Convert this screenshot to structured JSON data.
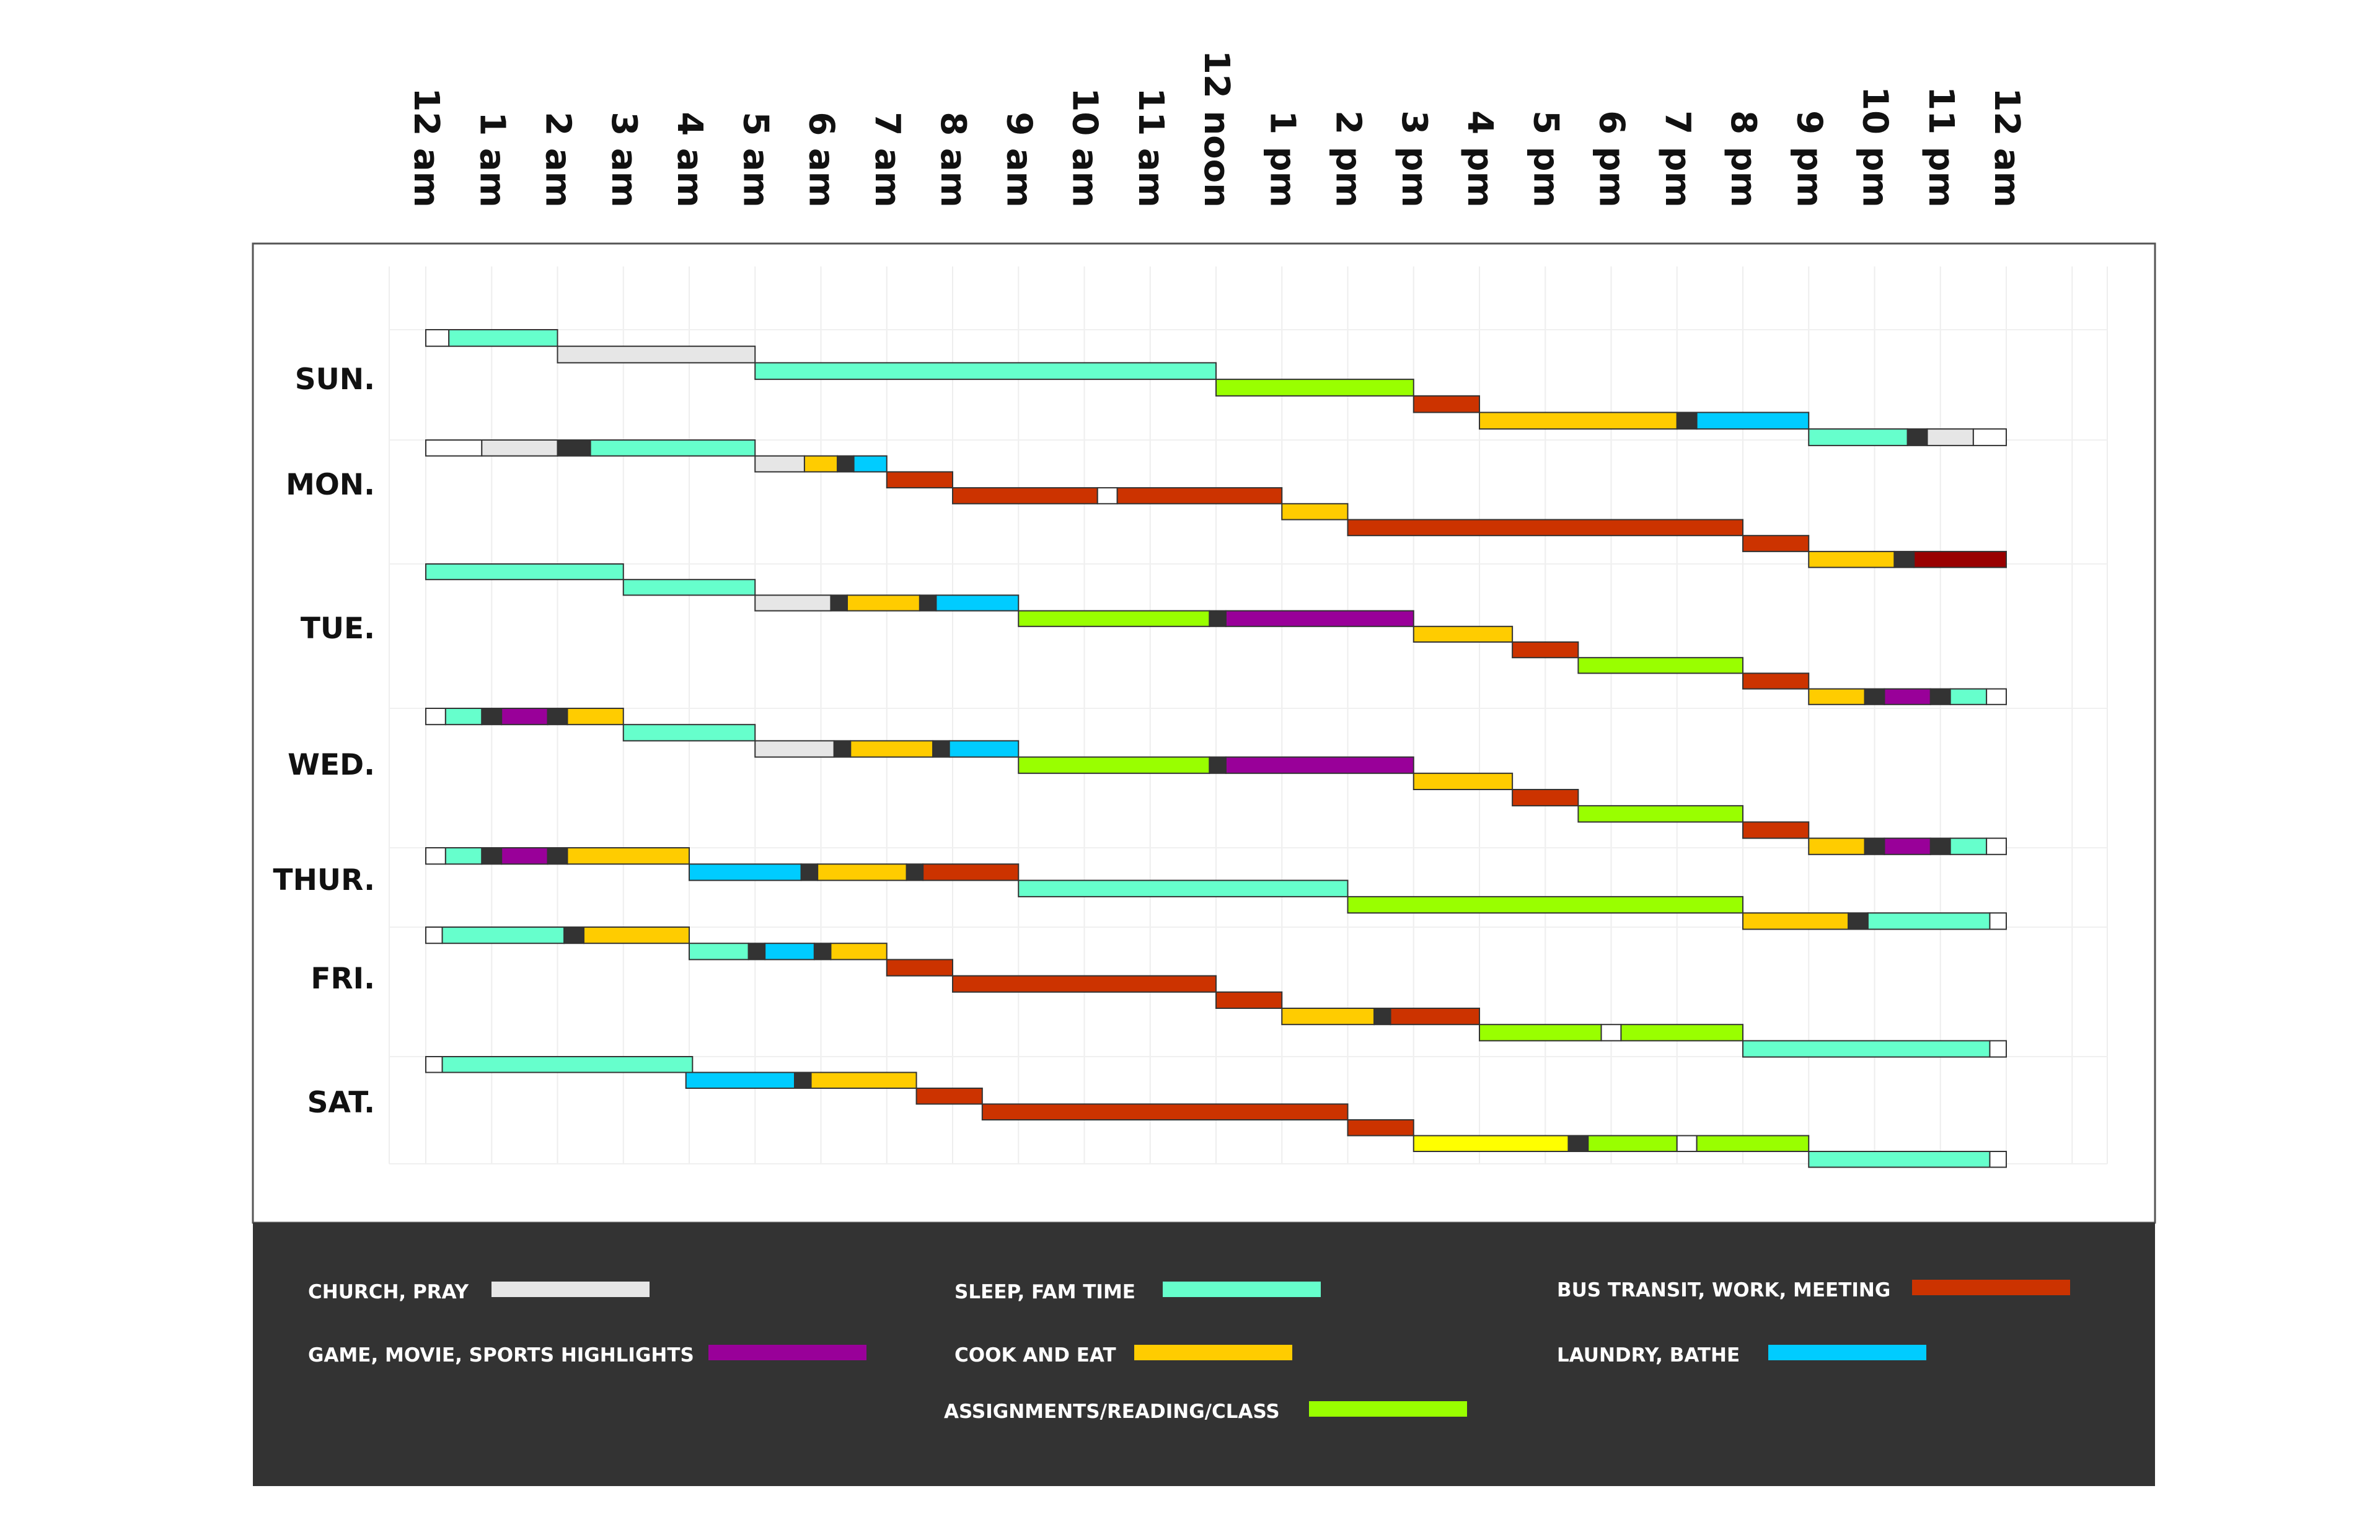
{
  "chart_data": {
    "type": "gantt",
    "title": "",
    "x_axis": {
      "range_hours": [
        0,
        24
      ],
      "tick_labels": [
        "12 am",
        "1 am",
        "2 am",
        "3 am",
        "4 am",
        "5 am",
        "6 am",
        "7 am",
        "8 am",
        "9 am",
        "10 am",
        "11 am",
        "12 noon",
        "1 pm",
        "2 pm",
        "3 pm",
        "4 pm",
        "5 pm",
        "6 pm",
        "7 pm",
        "8 pm",
        "9 pm",
        "10 pm",
        "11 pm",
        "12 am"
      ],
      "grid": true
    },
    "colors": {
      "church": "#e6e6e6",
      "sleep": "#66ffcc",
      "bus": "#cc3300",
      "game": "#990099",
      "cook": "#ffcc00",
      "laundry": "#00ccff",
      "assign": "#99ff00",
      "free": "#ffffff",
      "transition": "#333333",
      "late": "#990000",
      "yellow": "#ffff00"
    },
    "legend": [
      {
        "key": "church",
        "label": "CHURCH, PRAY"
      },
      {
        "key": "sleep",
        "label": "SLEEP, FAM TIME"
      },
      {
        "key": "bus",
        "label": "BUS TRANSIT, WORK, MEETING"
      },
      {
        "key": "game",
        "label": "GAME, MOVIE, SPORTS HIGHLIGHTS"
      },
      {
        "key": "cook",
        "label": "COOK AND EAT"
      },
      {
        "key": "laundry",
        "label": "LAUNDRY, BATHE"
      },
      {
        "key": "assign",
        "label": "ASSIGNMENTS/READING/CLASS"
      }
    ],
    "days": [
      {
        "label": "SUN.",
        "segments": [
          [
            0,
            0,
            0.35,
            "free"
          ],
          [
            0,
            0.35,
            2,
            "sleep"
          ],
          [
            1,
            2,
            5,
            "church"
          ],
          [
            2,
            5,
            12,
            "sleep"
          ],
          [
            3,
            12,
            15,
            "assign"
          ],
          [
            4,
            15,
            16,
            "bus"
          ],
          [
            5,
            16,
            19,
            "cook"
          ],
          [
            5,
            19,
            19.3,
            "transition"
          ],
          [
            5,
            19.3,
            21,
            "laundry"
          ],
          [
            6,
            21,
            22.5,
            "sleep"
          ],
          [
            6,
            22.5,
            22.8,
            "transition"
          ],
          [
            6,
            22.8,
            23.5,
            "church"
          ],
          [
            6,
            23.5,
            24,
            "free"
          ]
        ]
      },
      {
        "label": "MON.",
        "segments": [
          [
            0,
            0,
            0.85,
            "free"
          ],
          [
            0,
            0.85,
            2,
            "church"
          ],
          [
            0,
            2,
            2.5,
            "transition"
          ],
          [
            0,
            2.5,
            5,
            "sleep"
          ],
          [
            1,
            5,
            5.75,
            "church"
          ],
          [
            1,
            5.75,
            6.25,
            "cook"
          ],
          [
            1,
            6.25,
            6.5,
            "transition"
          ],
          [
            1,
            6.5,
            7,
            "laundry"
          ],
          [
            2,
            7,
            8,
            "bus"
          ],
          [
            3,
            8,
            10.2,
            "bus"
          ],
          [
            3,
            10.2,
            10.5,
            "free"
          ],
          [
            3,
            10.5,
            13,
            "bus"
          ],
          [
            4,
            13,
            14,
            "cook"
          ],
          [
            5,
            14,
            20,
            "bus"
          ],
          [
            6,
            20,
            21,
            "bus"
          ],
          [
            7,
            21,
            22.3,
            "cook"
          ],
          [
            7,
            22.3,
            22.6,
            "transition"
          ],
          [
            7,
            22.6,
            24,
            "late"
          ]
        ]
      },
      {
        "label": "TUE.",
        "segments": [
          [
            0,
            0,
            3,
            "sleep"
          ],
          [
            1,
            3,
            5,
            "sleep"
          ],
          [
            2,
            5,
            6.15,
            "church"
          ],
          [
            2,
            6.15,
            6.4,
            "transition"
          ],
          [
            2,
            6.4,
            7.5,
            "cook"
          ],
          [
            2,
            7.5,
            7.75,
            "transition"
          ],
          [
            2,
            7.75,
            9,
            "laundry"
          ],
          [
            3,
            9,
            11.9,
            "assign"
          ],
          [
            3,
            11.9,
            12.15,
            "transition"
          ],
          [
            3,
            12.15,
            15,
            "game"
          ],
          [
            4,
            15,
            16.5,
            "cook"
          ],
          [
            5,
            16.5,
            17.5,
            "bus"
          ],
          [
            6,
            17.5,
            20,
            "assign"
          ],
          [
            7,
            20,
            21,
            "bus"
          ],
          [
            8,
            21,
            21.85,
            "cook"
          ],
          [
            8,
            21.85,
            22.15,
            "transition"
          ],
          [
            8,
            22.15,
            22.85,
            "game"
          ],
          [
            8,
            22.85,
            23.15,
            "transition"
          ],
          [
            8,
            23.15,
            23.7,
            "sleep"
          ],
          [
            8,
            23.7,
            24,
            "free"
          ]
        ]
      },
      {
        "label": "WED.",
        "segments": [
          [
            0,
            0,
            0.3,
            "free"
          ],
          [
            0,
            0.3,
            0.85,
            "sleep"
          ],
          [
            0,
            0.85,
            1.15,
            "transition"
          ],
          [
            0,
            1.15,
            1.85,
            "game"
          ],
          [
            0,
            1.85,
            2.15,
            "transition"
          ],
          [
            0,
            2.15,
            3,
            "cook"
          ],
          [
            1,
            3,
            5,
            "sleep"
          ],
          [
            2,
            5,
            6.2,
            "church"
          ],
          [
            2,
            6.2,
            6.45,
            "transition"
          ],
          [
            2,
            6.45,
            7.7,
            "cook"
          ],
          [
            2,
            7.7,
            7.95,
            "transition"
          ],
          [
            2,
            7.95,
            9,
            "laundry"
          ],
          [
            3,
            9,
            11.9,
            "assign"
          ],
          [
            3,
            11.9,
            12.15,
            "transition"
          ],
          [
            3,
            12.15,
            15,
            "game"
          ],
          [
            4,
            15,
            16.5,
            "cook"
          ],
          [
            5,
            16.5,
            17.5,
            "bus"
          ],
          [
            6,
            17.5,
            20,
            "assign"
          ],
          [
            7,
            20,
            21,
            "bus"
          ],
          [
            8,
            21,
            21.85,
            "cook"
          ],
          [
            8,
            21.85,
            22.15,
            "transition"
          ],
          [
            8,
            22.15,
            22.85,
            "game"
          ],
          [
            8,
            22.85,
            23.15,
            "transition"
          ],
          [
            8,
            23.15,
            23.7,
            "sleep"
          ],
          [
            8,
            23.7,
            24,
            "free"
          ]
        ]
      },
      {
        "label": "THUR.",
        "segments": [
          [
            0,
            0,
            0.3,
            "free"
          ],
          [
            0,
            0.3,
            0.85,
            "sleep"
          ],
          [
            0,
            0.85,
            1.15,
            "transition"
          ],
          [
            0,
            1.15,
            1.85,
            "game"
          ],
          [
            0,
            1.85,
            2.15,
            "transition"
          ],
          [
            0,
            2.15,
            4,
            "cook"
          ],
          [
            1,
            4,
            5.7,
            "laundry"
          ],
          [
            1,
            5.7,
            5.95,
            "transition"
          ],
          [
            1,
            5.95,
            7.3,
            "cook"
          ],
          [
            1,
            7.3,
            7.55,
            "transition"
          ],
          [
            1,
            7.55,
            9,
            "bus"
          ],
          [
            2,
            9,
            14,
            "sleep"
          ],
          [
            3,
            14,
            20,
            "assign"
          ],
          [
            4,
            20,
            21.6,
            "cook"
          ],
          [
            4,
            21.6,
            21.9,
            "transition"
          ],
          [
            4,
            21.9,
            23.75,
            "sleep"
          ],
          [
            4,
            23.75,
            24,
            "free"
          ]
        ]
      },
      {
        "label": "FRI.",
        "segments": [
          [
            0,
            0,
            0.25,
            "free"
          ],
          [
            0,
            0.25,
            2.1,
            "sleep"
          ],
          [
            0,
            2.1,
            2.4,
            "transition"
          ],
          [
            0,
            2.4,
            4,
            "cook"
          ],
          [
            1,
            4,
            4.9,
            "sleep"
          ],
          [
            1,
            4.9,
            5.15,
            "transition"
          ],
          [
            1,
            5.15,
            5.9,
            "laundry"
          ],
          [
            1,
            5.9,
            6.15,
            "transition"
          ],
          [
            1,
            6.15,
            7,
            "cook"
          ],
          [
            2,
            7,
            8,
            "bus"
          ],
          [
            3,
            8,
            12,
            "bus"
          ],
          [
            4,
            12,
            13,
            "bus"
          ],
          [
            5,
            13,
            14.4,
            "cook"
          ],
          [
            5,
            14.4,
            14.65,
            "transition"
          ],
          [
            5,
            14.65,
            16,
            "bus"
          ],
          [
            6,
            16,
            17.85,
            "assign"
          ],
          [
            6,
            17.85,
            18.15,
            "free"
          ],
          [
            6,
            18.15,
            20,
            "assign"
          ],
          [
            7,
            20,
            23.75,
            "sleep"
          ],
          [
            7,
            23.75,
            24,
            "free"
          ]
        ]
      },
      {
        "label": "SAT.",
        "segments": [
          [
            0,
            0,
            0.25,
            "free"
          ],
          [
            0,
            0.25,
            4.05,
            "sleep"
          ],
          [
            1,
            3.95,
            5.6,
            "laundry"
          ],
          [
            1,
            5.6,
            5.85,
            "transition"
          ],
          [
            1,
            5.85,
            7.45,
            "cook"
          ],
          [
            2,
            7.45,
            8.45,
            "bus"
          ],
          [
            3,
            8.45,
            14,
            "bus"
          ],
          [
            4,
            14,
            15,
            "bus"
          ],
          [
            5,
            15,
            17.35,
            "yellow"
          ],
          [
            5,
            17.35,
            17.65,
            "transition"
          ],
          [
            5,
            17.65,
            19,
            "assign"
          ],
          [
            5,
            19,
            19.3,
            "free"
          ],
          [
            5,
            19.3,
            21,
            "assign"
          ],
          [
            6,
            21,
            23.75,
            "sleep"
          ],
          [
            6,
            23.75,
            24,
            "free"
          ]
        ]
      }
    ]
  }
}
